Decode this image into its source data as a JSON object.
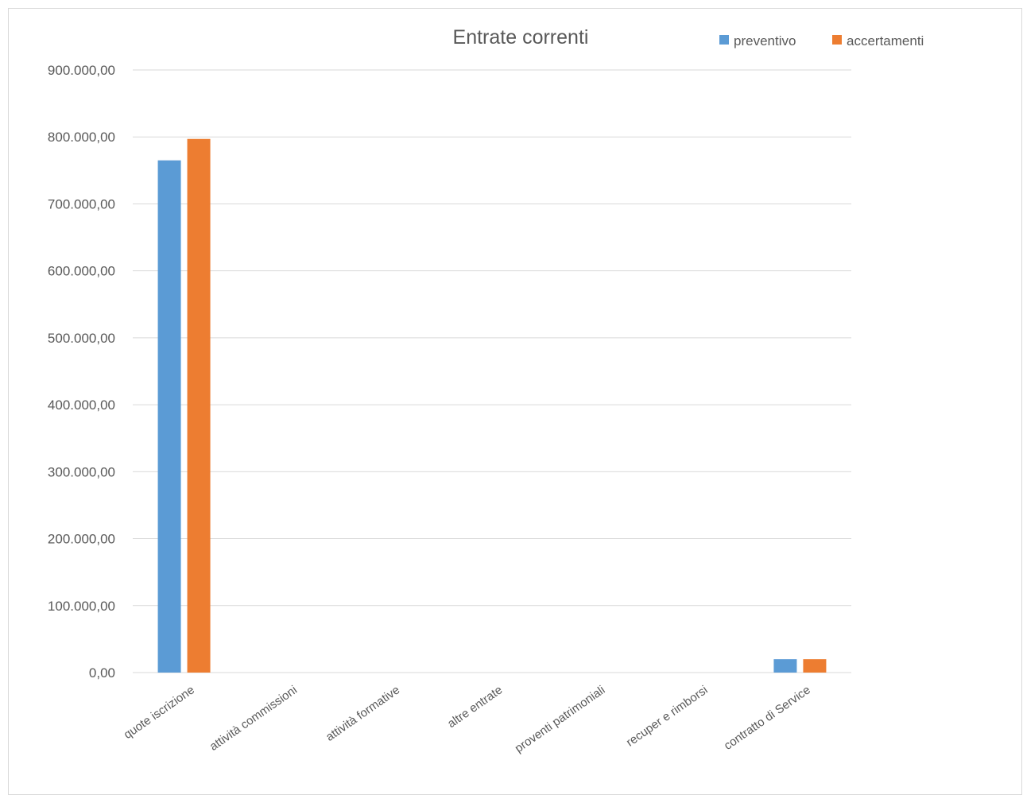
{
  "chart_data": {
    "type": "bar",
    "title": "Entrate correnti",
    "xlabel": "",
    "ylabel": "",
    "categories": [
      "quote iscrizione",
      "attività commissioni",
      "attività formative",
      "altre entrate",
      "proventi patrimoniali",
      "recuper e rimborsi",
      "contratto di Service"
    ],
    "series": [
      {
        "name": "preventivo",
        "color": "#5b9bd5",
        "values": [
          765000,
          0,
          0,
          0,
          0,
          0,
          20000
        ]
      },
      {
        "name": "accertamenti",
        "color": "#ed7d31",
        "values": [
          797000,
          0,
          0,
          0,
          0,
          0,
          20000
        ]
      }
    ],
    "ylim": [
      0,
      900000
    ],
    "yticks": [
      0,
      100000,
      200000,
      300000,
      400000,
      500000,
      600000,
      700000,
      800000,
      900000
    ],
    "ytick_labels": [
      "0,00",
      "100.000,00",
      "200.000,00",
      "300.000,00",
      "400.000,00",
      "500.000,00",
      "600.000,00",
      "700.000,00",
      "800.000,00",
      "900.000,00"
    ],
    "grid": true,
    "gridline_color": "#d9d9d9",
    "legend_position": "top-right"
  }
}
